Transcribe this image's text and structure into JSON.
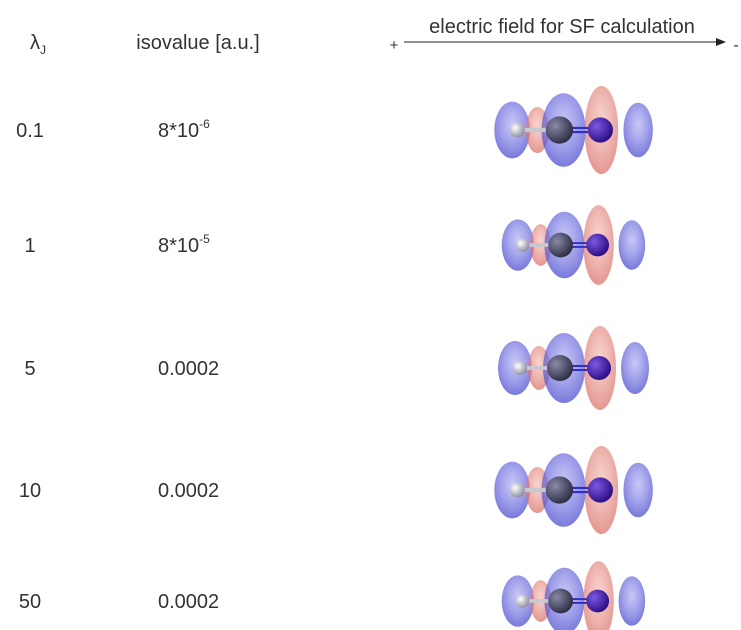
{
  "header": {
    "lambda": {
      "symbol": "λ",
      "sub": "J"
    },
    "isovalue": "isovalue [a.u.]",
    "field": {
      "label": "electric field for SF calculation",
      "plus": "+",
      "minus": "-"
    }
  },
  "rows": [
    {
      "lambda": "0.1",
      "isovalue": {
        "text": "8*10",
        "sup": "-6"
      }
    },
    {
      "lambda": "1",
      "isovalue": {
        "text": "8*10",
        "sup": "-5"
      }
    },
    {
      "lambda": "5",
      "isovalue": {
        "text": "0.0002"
      }
    },
    {
      "lambda": "10",
      "isovalue": {
        "text": "0.0002"
      }
    },
    {
      "lambda": "50",
      "isovalue": {
        "text": "0.0002"
      }
    }
  ]
}
